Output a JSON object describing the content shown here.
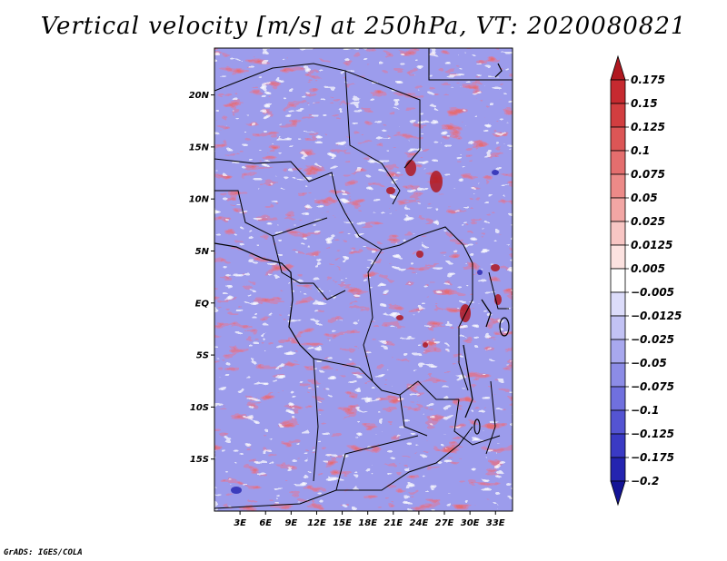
{
  "title": "Vertical velocity [m/s] at 250hPa, VT: 2020080821",
  "footer": "GrADS: IGES/COLA",
  "map": {
    "lat_labels": [
      "20N",
      "15N",
      "10N",
      "5N",
      "EQ",
      "5S",
      "10S",
      "15S"
    ],
    "lat_values": [
      20,
      15,
      10,
      5,
      0,
      -5,
      -10,
      -15
    ],
    "lon_labels": [
      "3E",
      "6E",
      "9E",
      "12E",
      "15E",
      "18E",
      "21E",
      "24E",
      "27E",
      "30E",
      "33E"
    ],
    "lon_values": [
      3,
      6,
      9,
      12,
      15,
      18,
      21,
      24,
      27,
      30,
      33
    ],
    "lon_range": [
      0,
      35
    ],
    "lat_range": [
      -20,
      24.5
    ]
  },
  "colorbar": {
    "labels": [
      "0.175",
      "0.15",
      "0.125",
      "0.1",
      "0.075",
      "0.05",
      "0.025",
      "0.0125",
      "0.005",
      "−0.005",
      "−0.0125",
      "−0.025",
      "−0.05",
      "−0.075",
      "−0.1",
      "−0.125",
      "−0.175",
      "−0.2"
    ],
    "colors": [
      "#b01820",
      "#c62a30",
      "#d23e40",
      "#dc5656",
      "#e46e6e",
      "#ec8a88",
      "#f2a6a4",
      "#f8c6c4",
      "#fce2e0",
      "#ffffff",
      "#dcdcfa",
      "#c2c2f4",
      "#a8a8ee",
      "#8c8ce6",
      "#7070de",
      "#5454d2",
      "#3a3ac4",
      "#2424b0",
      "#141496"
    ]
  }
}
